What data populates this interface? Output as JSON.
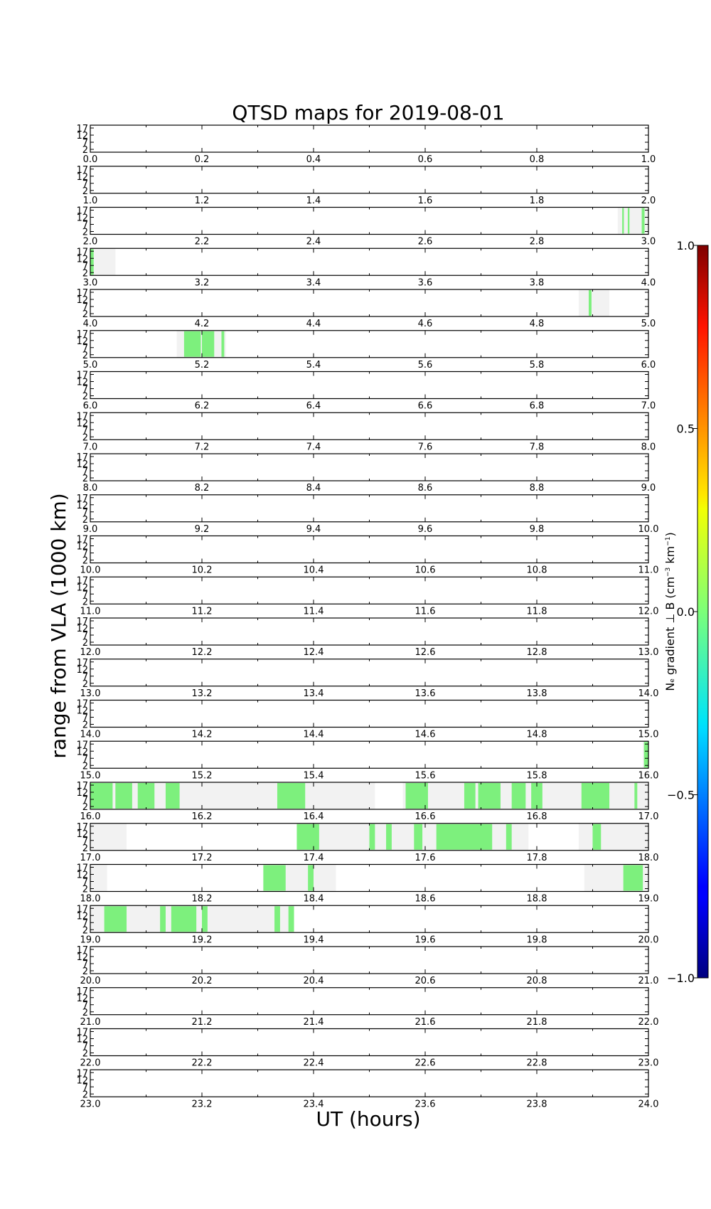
{
  "chart_data": {
    "type": "heatmap",
    "title": "QTSD maps for 2019-08-01",
    "xlabel": "UT (hours)",
    "ylabel": "range from VLA (1000 km)",
    "y_ticks": [
      "17",
      "12",
      "7",
      "2"
    ],
    "y_tick_values": [
      17,
      12,
      7,
      2
    ],
    "ylim": [
      0,
      19
    ],
    "rows": [
      {
        "start": 0,
        "end": 1,
        "ticks": [
          "0.0",
          "0.2",
          "0.4",
          "0.6",
          "0.8",
          "1.0"
        ],
        "coverage": [],
        "gradient": []
      },
      {
        "start": 1,
        "end": 2,
        "ticks": [
          "1.0",
          "1.2",
          "1.4",
          "1.6",
          "1.8",
          "2.0"
        ],
        "coverage": [],
        "gradient": []
      },
      {
        "start": 2,
        "end": 3,
        "ticks": [
          "2.0",
          "2.2",
          "2.4",
          "2.6",
          "2.8",
          "3.0"
        ],
        "coverage": [
          [
            2.945,
            3.0
          ]
        ],
        "gradient": [
          [
            2.953,
            2.956
          ],
          [
            2.963,
            2.966
          ],
          [
            2.988,
            2.993
          ]
        ]
      },
      {
        "start": 3,
        "end": 4,
        "ticks": [
          "3.0",
          "3.2",
          "3.4",
          "3.6",
          "3.8",
          "4.0"
        ],
        "coverage": [
          [
            3.0,
            3.045
          ]
        ],
        "gradient": [
          [
            3.0,
            3.006
          ]
        ]
      },
      {
        "start": 4,
        "end": 5,
        "ticks": [
          "4.0",
          "4.2",
          "4.4",
          "4.6",
          "4.8",
          "5.0"
        ],
        "coverage": [
          [
            4.875,
            4.93
          ]
        ],
        "gradient": [
          [
            4.893,
            4.898
          ]
        ]
      },
      {
        "start": 5,
        "end": 6,
        "ticks": [
          "5.0",
          "5.2",
          "5.4",
          "5.6",
          "5.8",
          "6.0"
        ],
        "coverage": [
          [
            5.155,
            5.243
          ]
        ],
        "gradient": [
          [
            5.168,
            5.198
          ],
          [
            5.2,
            5.222
          ],
          [
            5.235,
            5.24
          ]
        ]
      },
      {
        "start": 6,
        "end": 7,
        "ticks": [
          "6.0",
          "6.2",
          "6.4",
          "6.6",
          "6.8",
          "7.0"
        ],
        "coverage": [],
        "gradient": []
      },
      {
        "start": 7,
        "end": 8,
        "ticks": [
          "7.0",
          "7.2",
          "7.4",
          "7.6",
          "7.8",
          "8.0"
        ],
        "coverage": [],
        "gradient": []
      },
      {
        "start": 8,
        "end": 9,
        "ticks": [
          "8.0",
          "8.2",
          "8.4",
          "8.6",
          "8.8",
          "9.0"
        ],
        "coverage": [],
        "gradient": []
      },
      {
        "start": 9,
        "end": 10,
        "ticks": [
          "9.0",
          "9.2",
          "9.4",
          "9.6",
          "9.8",
          "10.0"
        ],
        "coverage": [],
        "gradient": []
      },
      {
        "start": 10,
        "end": 11,
        "ticks": [
          "10.0",
          "10.2",
          "10.4",
          "10.6",
          "10.8",
          "11.0"
        ],
        "coverage": [],
        "gradient": []
      },
      {
        "start": 11,
        "end": 12,
        "ticks": [
          "11.0",
          "11.2",
          "11.4",
          "11.6",
          "11.8",
          "12.0"
        ],
        "coverage": [],
        "gradient": []
      },
      {
        "start": 12,
        "end": 13,
        "ticks": [
          "12.0",
          "12.2",
          "12.4",
          "12.6",
          "12.8",
          "13.0"
        ],
        "coverage": [],
        "gradient": []
      },
      {
        "start": 13,
        "end": 14,
        "ticks": [
          "13.0",
          "13.2",
          "13.4",
          "13.6",
          "13.8",
          "14.0"
        ],
        "coverage": [],
        "gradient": []
      },
      {
        "start": 14,
        "end": 15,
        "ticks": [
          "14.0",
          "14.2",
          "14.4",
          "14.6",
          "14.8",
          "15.0"
        ],
        "coverage": [],
        "gradient": []
      },
      {
        "start": 15,
        "end": 16,
        "ticks": [
          "15.0",
          "15.2",
          "15.4",
          "15.6",
          "15.8",
          "16.0"
        ],
        "coverage": [
          [
            15.99,
            16.0
          ]
        ],
        "gradient": [
          [
            15.992,
            16.0
          ]
        ]
      },
      {
        "start": 16,
        "end": 17,
        "ticks": [
          "16.0",
          "16.2",
          "16.4",
          "16.6",
          "16.8",
          "17.0"
        ],
        "coverage": [
          [
            16.0,
            16.51
          ],
          [
            16.56,
            17.0
          ]
        ],
        "gradient": [
          [
            16.0,
            16.04
          ],
          [
            16.045,
            16.075
          ],
          [
            16.085,
            16.115
          ],
          [
            16.135,
            16.16
          ],
          [
            16.335,
            16.385
          ],
          [
            16.565,
            16.605
          ],
          [
            16.67,
            16.69
          ],
          [
            16.695,
            16.735
          ],
          [
            16.755,
            16.78
          ],
          [
            16.79,
            16.81
          ],
          [
            16.88,
            16.93
          ],
          [
            16.975,
            16.98
          ]
        ]
      },
      {
        "start": 17,
        "end": 18,
        "ticks": [
          "17.0",
          "17.2",
          "17.4",
          "17.6",
          "17.8",
          "18.0"
        ],
        "coverage": [
          [
            17.0,
            17.065
          ],
          [
            17.37,
            17.785
          ],
          [
            17.875,
            18.0
          ]
        ],
        "gradient": [
          [
            17.37,
            17.41
          ],
          [
            17.5,
            17.51
          ],
          [
            17.53,
            17.54
          ],
          [
            17.58,
            17.595
          ],
          [
            17.62,
            17.72
          ],
          [
            17.745,
            17.755
          ],
          [
            17.9,
            17.915
          ]
        ]
      },
      {
        "start": 18,
        "end": 19,
        "ticks": [
          "18.0",
          "18.2",
          "18.4",
          "18.6",
          "18.8",
          "19.0"
        ],
        "coverage": [
          [
            18.0,
            18.03
          ],
          [
            18.31,
            18.44
          ],
          [
            18.885,
            19.0
          ]
        ],
        "gradient": [
          [
            18.31,
            18.35
          ],
          [
            18.39,
            18.4
          ],
          [
            18.955,
            18.99
          ]
        ]
      },
      {
        "start": 19,
        "end": 20,
        "ticks": [
          "19.0",
          "19.2",
          "19.4",
          "19.6",
          "19.8",
          "20.0"
        ],
        "coverage": [
          [
            19.0,
            19.365
          ]
        ],
        "gradient": [
          [
            19.025,
            19.065
          ],
          [
            19.125,
            19.135
          ],
          [
            19.145,
            19.19
          ],
          [
            19.2,
            19.21
          ],
          [
            19.33,
            19.34
          ],
          [
            19.355,
            19.365
          ]
        ]
      },
      {
        "start": 20,
        "end": 21,
        "ticks": [
          "20.0",
          "20.2",
          "20.4",
          "20.6",
          "20.8",
          "21.0"
        ],
        "coverage": [],
        "gradient": []
      },
      {
        "start": 21,
        "end": 22,
        "ticks": [
          "21.0",
          "21.2",
          "21.4",
          "21.6",
          "21.8",
          "22.0"
        ],
        "coverage": [],
        "gradient": []
      },
      {
        "start": 22,
        "end": 23,
        "ticks": [
          "22.0",
          "22.2",
          "22.4",
          "22.6",
          "22.8",
          "23.0"
        ],
        "coverage": [],
        "gradient": []
      },
      {
        "start": 23,
        "end": 24,
        "ticks": [
          "23.0",
          "23.2",
          "23.4",
          "23.6",
          "23.8",
          "24.0"
        ],
        "coverage": [],
        "gradient": []
      }
    ],
    "colorbar": {
      "label_html": "N<tspan font-size='9'>e</tspan> gradient ⊥ B (cm<tspan dy='-6' font-size='9'>−3</tspan><tspan dy='6'> km</tspan><tspan dy='-6' font-size='9'>−1</tspan><tspan dy='6'>)</tspan>",
      "range": [
        -1.0,
        1.0
      ],
      "ticks": [
        "1.0",
        "0.5",
        "0.0",
        "−0.5",
        "−1.0"
      ],
      "tick_values": [
        1.0,
        0.5,
        0.0,
        -0.5,
        -1.0
      ]
    },
    "colors": {
      "gradient": "#7df07d",
      "coverage": "#f2f2f2",
      "colormap": "jet"
    }
  }
}
